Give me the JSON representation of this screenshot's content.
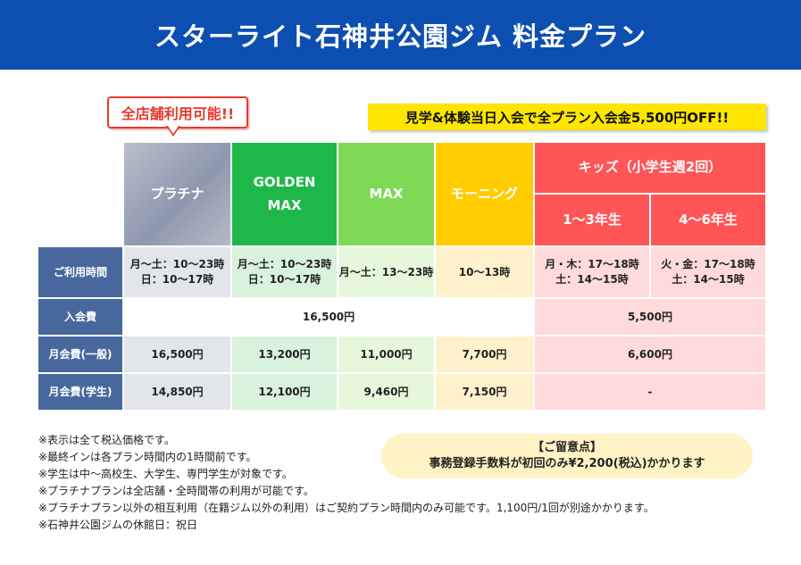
{
  "header": {
    "title": "スターライト石神井公園ジム 料金プラン"
  },
  "badge": {
    "text": "全店舗利用可能!!"
  },
  "promo": {
    "text": "見学&体験当日入会で全プラン入会金5,500円OFF!!"
  },
  "columns": {
    "platinum": "プラチナ",
    "golden_max": "GOLDEN\nMAX",
    "max": "MAX",
    "morning": "モーニング",
    "kids": "キッズ（小学生週2回）",
    "kids_1_3": "1〜3年生",
    "kids_4_6": "4〜6年生"
  },
  "rows": {
    "hours": {
      "label": "ご利用時間",
      "platinum": "月〜土：10〜23時\n日：10〜17時",
      "golden_max": "月〜土：10〜23時\n日：10〜17時",
      "max": "月〜土：13〜23時",
      "morning": "10〜13時",
      "kids_1_3": "月・木：17〜18時\n土：14〜15時",
      "kids_4_6": "火・金：17〜18時\n土：14〜15時"
    },
    "entry_fee": {
      "label": "入会費",
      "adult": "16,500円",
      "kids": "5,500円"
    },
    "monthly_general": {
      "label": "月会費(一般)",
      "platinum": "16,500円",
      "golden_max": "13,200円",
      "max": "11,000円",
      "morning": "7,700円",
      "kids": "6,600円"
    },
    "monthly_student": {
      "label": "月会費(学生)",
      "platinum": "14,850円",
      "golden_max": "12,100円",
      "max": "9,460円",
      "morning": "7,150円",
      "kids": "-"
    }
  },
  "notes": [
    "※表示は全て税込価格です。",
    "※最終インは各プラン時間内の1時間前です。",
    "※学生は中〜高校生、大学生、専門学生が対象です。",
    "※プラチナプランは全店舗・全時間帯の利用が可能です。",
    "※プラチナプラン以外の相互利用（在籍ジム以外の利用）はご契約プラン時間内のみ可能です。1,100円/1回が別途かかります。",
    "※石神井公園ジムの休館日：祝日"
  ],
  "notice": {
    "title": "【ご留意点】",
    "text": "事務登録手数料が初回のみ¥2,200(税込)かかります"
  },
  "colors": {
    "header": "#0d4fb0",
    "golden_max": "#1eb84a",
    "max": "#7ed957",
    "morning": "#ffcc00",
    "kids": "#ff5557",
    "row_header": "#48689d",
    "promo": "#ffe600"
  }
}
